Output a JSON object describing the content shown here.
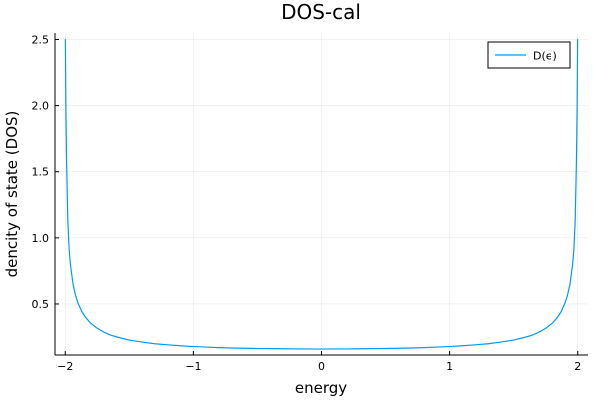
{
  "chart_data": {
    "type": "line",
    "title": "DOS-cal",
    "xlabel": "energy",
    "ylabel": "dencity of state (DOS)",
    "xlim": [
      -2.08,
      2.08
    ],
    "ylim": [
      0.114,
      2.549
    ],
    "xticks": [
      -2,
      -1,
      0,
      1,
      2
    ],
    "xtick_labels": [
      "−2",
      "−1",
      "0",
      "1",
      "2"
    ],
    "yticks": [
      0.5,
      1.0,
      1.5,
      2.0,
      2.5
    ],
    "ytick_labels": [
      "0.5",
      "1.0",
      "1.5",
      "2.0",
      "2.5"
    ],
    "grid": true,
    "legend": "top-right",
    "series": [
      {
        "name": "D(ϵ)",
        "color": "#009af9",
        "x": [
          -1.9971,
          -1.999,
          -1.995,
          -1.99,
          -1.98,
          -1.97,
          -1.96,
          -1.94,
          -1.92,
          -1.9,
          -1.87,
          -1.84,
          -1.8,
          -1.75,
          -1.7,
          -1.65,
          -1.6,
          -1.5,
          -1.4,
          -1.3,
          -1.2,
          -1.1,
          -1.0,
          -0.9,
          -0.8,
          -0.7,
          -0.6,
          -0.5,
          -0.4,
          -0.3,
          -0.2,
          -0.1,
          0.0,
          0.1,
          0.2,
          0.3,
          0.4,
          0.5,
          0.6,
          0.7,
          0.8,
          0.9,
          1.0,
          1.1,
          1.2,
          1.3,
          1.4,
          1.5,
          1.6,
          1.65,
          1.7,
          1.75,
          1.8,
          1.84,
          1.87,
          1.9,
          1.92,
          1.94,
          1.96,
          1.97,
          1.98,
          1.99,
          1.995,
          1.999,
          1.9971
        ],
        "y": [
          2.5,
          2.5,
          1.98,
          1.6,
          1.13,
          0.92,
          0.8,
          0.654,
          0.565,
          0.506,
          0.441,
          0.397,
          0.353,
          0.316,
          0.288,
          0.266,
          0.251,
          0.227,
          0.212,
          0.199,
          0.191,
          0.184,
          0.178,
          0.174,
          0.17,
          0.167,
          0.165,
          0.163,
          0.162,
          0.161,
          0.16,
          0.16,
          0.159,
          0.16,
          0.16,
          0.161,
          0.162,
          0.163,
          0.165,
          0.167,
          0.17,
          0.174,
          0.178,
          0.184,
          0.191,
          0.199,
          0.212,
          0.227,
          0.251,
          0.266,
          0.288,
          0.316,
          0.353,
          0.397,
          0.441,
          0.506,
          0.565,
          0.654,
          0.8,
          0.92,
          1.13,
          1.6,
          1.98,
          2.5,
          2.5
        ]
      }
    ]
  }
}
